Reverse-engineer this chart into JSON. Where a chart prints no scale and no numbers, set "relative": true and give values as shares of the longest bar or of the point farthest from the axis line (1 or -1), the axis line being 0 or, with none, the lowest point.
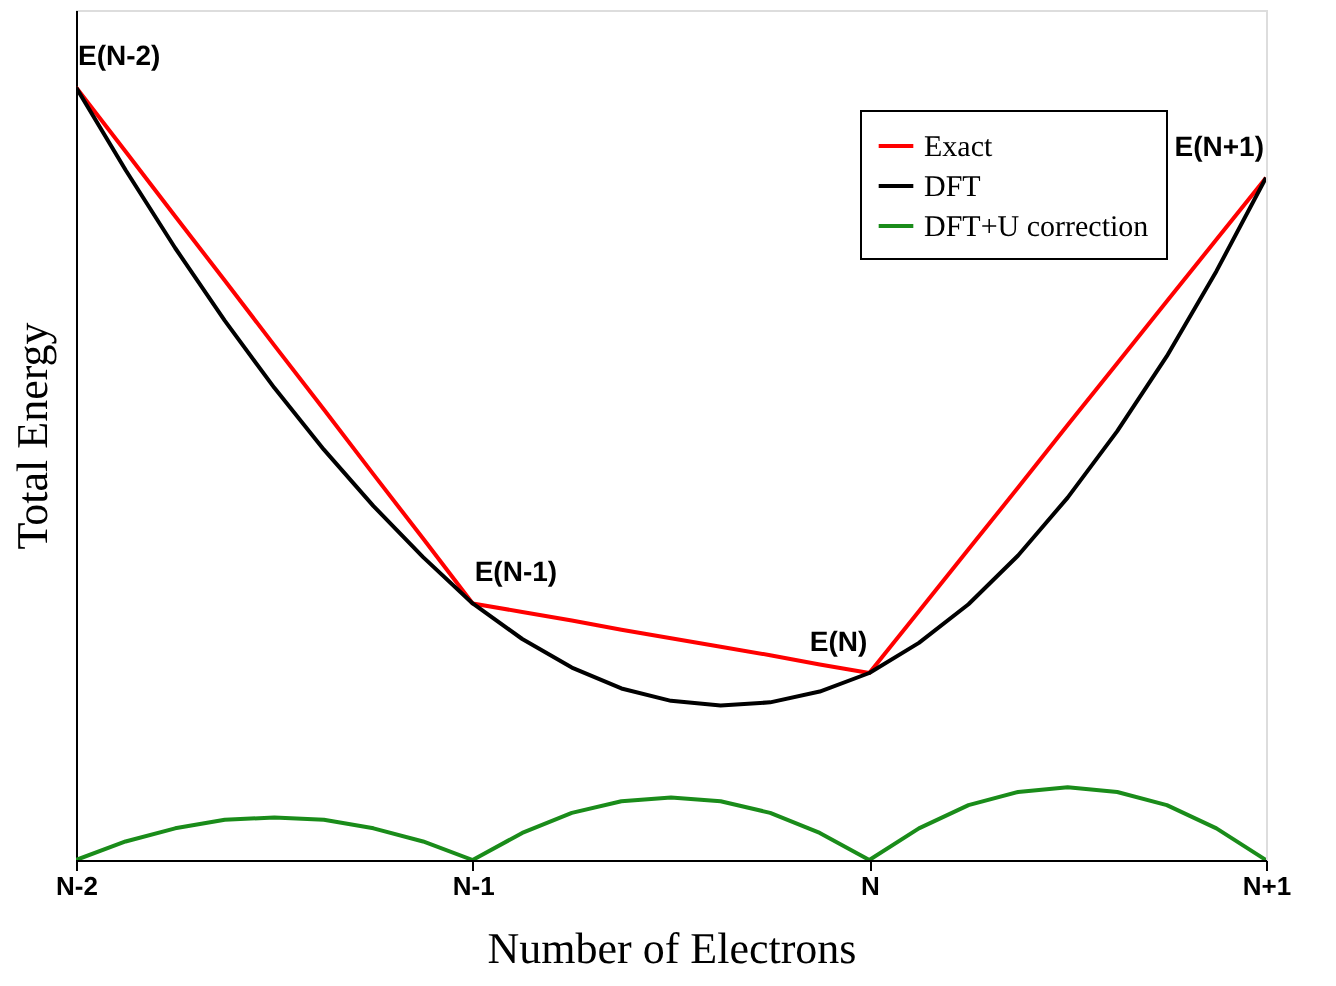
{
  "chart_data": {
    "type": "line",
    "relative": true,
    "xlabel": "Number of Electrons",
    "ylabel": "Total Energy",
    "categories": [
      "N-2",
      null,
      null,
      null,
      null,
      null,
      null,
      null,
      "N-1",
      null,
      null,
      null,
      null,
      null,
      null,
      null,
      "N",
      null,
      null,
      null,
      null,
      null,
      null,
      null,
      "N+1"
    ],
    "legend": "top right",
    "grid": false,
    "marker": "none",
    "line_style": "solid",
    "series": [
      {
        "name": "Exact",
        "color": "#ff0000",
        "values": [
          1,
          0.917,
          0.833,
          0.75,
          0.666,
          0.583,
          0.499,
          0.416,
          0.332,
          0.321,
          0.31,
          0.298,
          0.287,
          0.276,
          0.265,
          0.253,
          0.242,
          0.322,
          0.402,
          0.482,
          0.563,
          0.643,
          0.723,
          0.803,
          0.883
        ]
      },
      {
        "name": "DFT",
        "color": "#000000",
        "values": [
          1,
          0.893,
          0.792,
          0.698,
          0.611,
          0.531,
          0.458,
          0.392,
          0.332,
          0.286,
          0.249,
          0.222,
          0.206,
          0.2,
          0.204,
          0.218,
          0.242,
          0.281,
          0.331,
          0.394,
          0.469,
          0.555,
          0.652,
          0.762,
          0.883
        ]
      },
      {
        "name": "DFT+U correction",
        "color": "#1a8c1a",
        "values": [
          0,
          0.024,
          0.041,
          0.052,
          0.055,
          0.052,
          0.041,
          0.024,
          0,
          0.035,
          0.061,
          0.076,
          0.081,
          0.076,
          0.061,
          0.035,
          0,
          0.041,
          0.071,
          0.088,
          0.094,
          0.088,
          0.071,
          0.041,
          0
        ]
      }
    ],
    "annotations": [
      {
        "text": "E(N-2)",
        "x": "N-2",
        "y": 1
      },
      {
        "text": "E(N-1)",
        "x": "N-1",
        "y": 0.332
      },
      {
        "text": "E(N)",
        "x": "N",
        "y": 0.242
      },
      {
        "text": "E(N+1)",
        "x": "N+1",
        "y": 0.883
      }
    ]
  }
}
